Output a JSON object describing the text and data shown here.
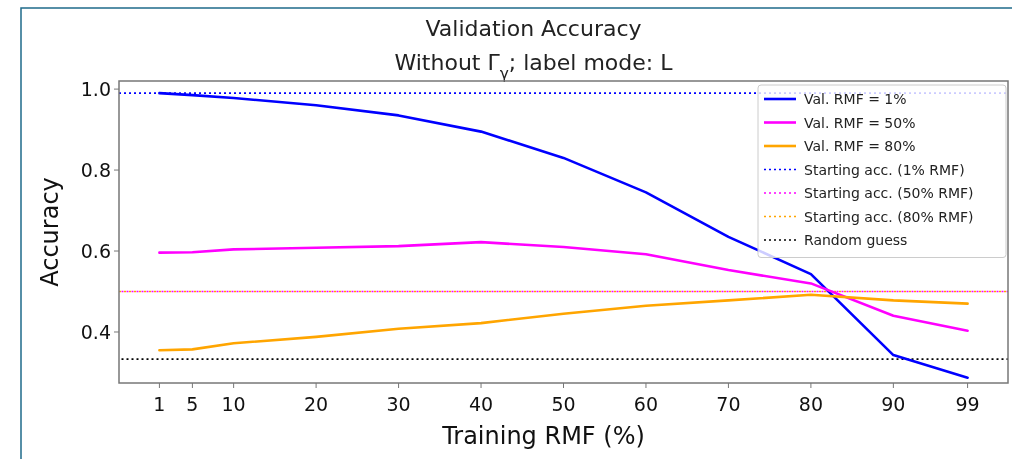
{
  "chart_data": {
    "type": "line",
    "title": "Validation Accuracy",
    "subtitle": "Without Γ$_{γ}$; label mode: L",
    "xlabel": "Training RMF (%)",
    "ylabel": "Accuracy",
    "x": [
      1,
      5,
      10,
      20,
      30,
      40,
      50,
      60,
      70,
      80,
      90,
      99
    ],
    "series": [
      {
        "name": "Val. RMF = 1%",
        "color": "#0000ff",
        "values": [
          0.99,
          0.985,
          0.978,
          0.96,
          0.935,
          0.895,
          0.83,
          0.745,
          0.635,
          0.543,
          0.343,
          0.287
        ]
      },
      {
        "name": "Val. RMF = 50%",
        "color": "#ff00ff",
        "values": [
          0.596,
          0.597,
          0.604,
          0.608,
          0.612,
          0.622,
          0.61,
          0.592,
          0.553,
          0.52,
          0.44,
          0.403
        ]
      },
      {
        "name": "Val. RMF = 80%",
        "color": "#ffa500",
        "values": [
          0.355,
          0.357,
          0.372,
          0.388,
          0.408,
          0.422,
          0.445,
          0.465,
          0.478,
          0.492,
          0.478,
          0.47
        ]
      }
    ],
    "ref_lines": [
      {
        "axis": "y",
        "value": 0.99,
        "label": "Starting acc. (1% RMF)",
        "color": "#0000ff",
        "line_style": "dotted"
      },
      {
        "axis": "y",
        "value": 0.5,
        "label": "Starting acc. (50% RMF)",
        "color": "#ff00ff",
        "line_style": "dotted"
      },
      {
        "axis": "y",
        "value": 0.5,
        "label": "Starting acc. (80% RMF)",
        "color": "#ffa500",
        "line_style": "dotted"
      },
      {
        "axis": "y",
        "value": 0.333,
        "label": "Random guess",
        "color": "#000000",
        "line_style": "dotted"
      }
    ],
    "xlim": [
      -3.9,
      103.9
    ],
    "xticks": [
      1,
      5,
      10,
      20,
      30,
      40,
      50,
      60,
      70,
      80,
      90,
      99
    ],
    "ylim": [
      0.274,
      1.02
    ],
    "yticks": [
      {
        "value": 0.4,
        "label": "0.4"
      },
      {
        "value": 0.6,
        "label": "0.6"
      },
      {
        "value": 0.8,
        "label": "0.8"
      },
      {
        "value": 1.0,
        "label": "1.0"
      }
    ],
    "grid": false,
    "legend": "top right",
    "marker": "none",
    "line_style": "solid"
  }
}
